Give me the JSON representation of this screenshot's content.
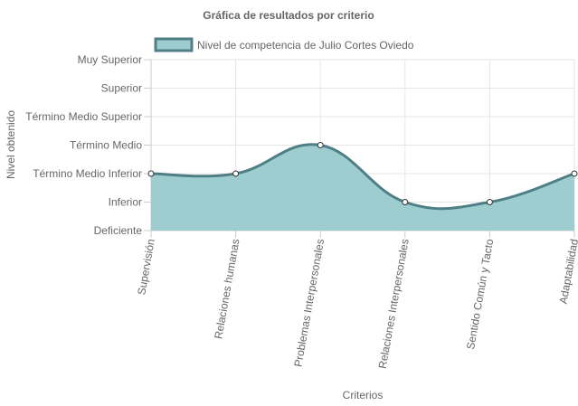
{
  "chart_data": {
    "type": "area",
    "title": "Gráfica de resultados por criterio",
    "xlabel": "Criterios",
    "ylabel": "Nivel obtenido",
    "categories": [
      "Supervisión",
      "Relaciones humanas",
      "Problemas Interpersonales",
      "Relaciones Interpersonales",
      "Sentido Común y Tacto",
      "Adaptabilidad"
    ],
    "y_levels": [
      "Deficiente",
      "Inferior",
      "Término Medio Inferior",
      "Término Medio",
      "Término Medio Superior",
      "Superior",
      "Muy Superior"
    ],
    "ylim": [
      0,
      6
    ],
    "grid": true,
    "legend_position": "top",
    "series": [
      {
        "name": "Nivel de competencia de Julio Cortes Oviedo",
        "values": [
          2,
          2,
          3,
          1,
          1,
          2
        ],
        "line_color": "#4f7f86",
        "fill_color": "#9ecdd0",
        "point_fill": "#ffffff",
        "point_stroke": "#333333"
      }
    ]
  }
}
